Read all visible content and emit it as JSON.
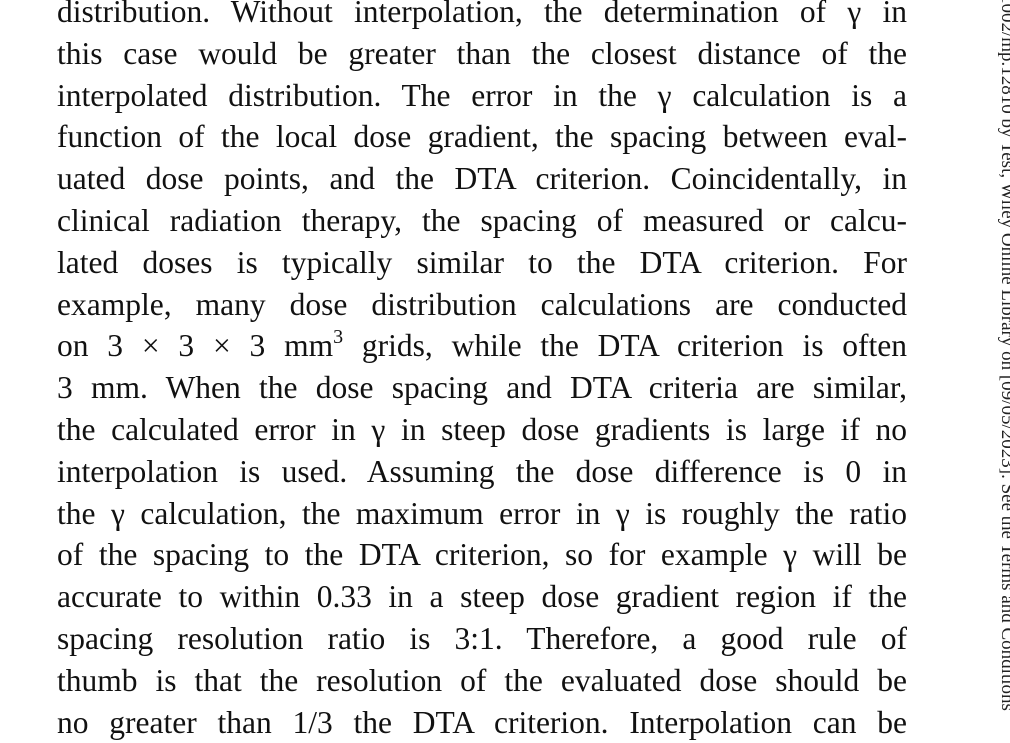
{
  "body": {
    "lines": [
      "distribution. Without interpolation, the determination of γ in",
      "this case would be greater than the closest distance of the",
      "interpolated distribution. The error in the γ calculation is a",
      "function of the local dose gradient, the spacing between eval-",
      "uated dose points, and the DTA criterion. Coincidentally, in",
      "clinical radiation therapy, the spacing of measured or calcu-",
      "lated doses is typically similar to the DTA criterion. For",
      "example, many dose distribution calculations are conducted",
      {
        "text": "on 3 × 3 × 3 mm",
        "sup": "3",
        "rest": " grids, while the DTA criterion is often"
      },
      "3 mm. When the dose spacing and DTA criteria are similar,",
      "the calculated error in γ in steep dose gradients is large if no",
      "interpolation is used. Assuming the dose difference is 0 in",
      "the γ calculation, the maximum error in γ is roughly the ratio",
      "of the spacing to the DTA criterion, so for example γ will be",
      "accurate to within 0.33 in a steep dose gradient region if the",
      "spacing resolution ratio is 3:1. Therefore, a good rule of",
      "thumb is that the resolution of the evaluated dose should be",
      "no greater than 1/3 the DTA criterion. Interpolation can be"
    ]
  },
  "margin_note": "1002/mp.12810 by Test, Wiley Online Library on [09/05/2023]. See the Terms and Conditions"
}
